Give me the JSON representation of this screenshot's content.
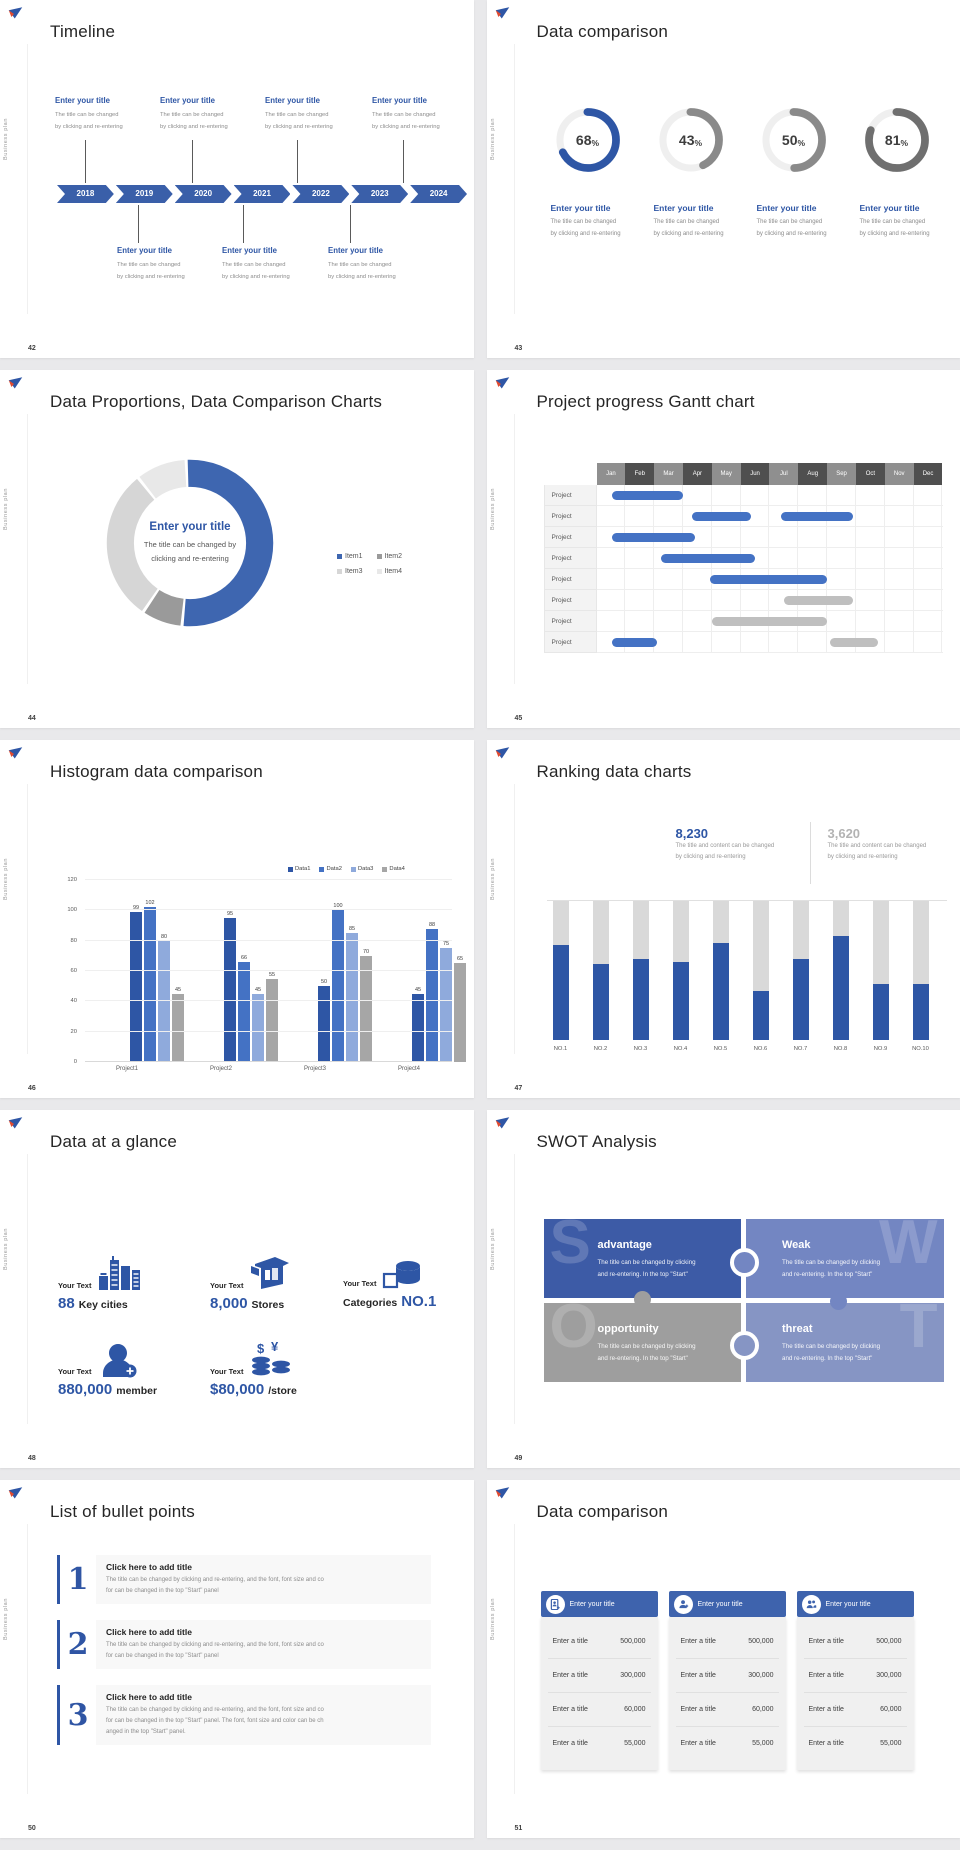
{
  "shared": {
    "brand": "Business plan",
    "enter_title": "Enter your title",
    "desc1": "The title can be changed",
    "desc2": "by clicking and re-entering"
  },
  "colors": {
    "accent_blue": "#2e56a5",
    "chevron_blue": "#3a5fa9",
    "bar_blue": "#4472c4",
    "bar_gray": "#bfbfbf",
    "header_blue": "#3e63ad"
  },
  "slides": {
    "timeline": {
      "number": "42",
      "title": "Timeline",
      "years": [
        "2018",
        "2019",
        "2020",
        "2021",
        "2022",
        "2023",
        "2024"
      ]
    },
    "kpi": {
      "number": "43",
      "title": "Data comparison",
      "items": [
        {
          "value": "68",
          "unit": "%"
        },
        {
          "value": "43",
          "unit": "%"
        },
        {
          "value": "50",
          "unit": "%"
        },
        {
          "value": "81",
          "unit": "%"
        }
      ]
    },
    "proportions": {
      "number": "44",
      "title": "Data Proportions, Data Comparison Charts",
      "center_title": "Enter your title",
      "center_desc1": "The title can be changed by",
      "center_desc2": "clicking and re-entering"
    },
    "gantt": {
      "number": "45",
      "title": "Project progress Gantt chart"
    },
    "histogram": {
      "number": "46",
      "title": "Histogram data comparison"
    },
    "ranking": {
      "number": "47",
      "title": "Ranking data charts",
      "stat_primary": {
        "value": "8,230",
        "desc1": "The title and content can be changed",
        "desc2": "by clicking and re-entering"
      },
      "stat_secondary": {
        "value": "3,620",
        "desc1": "The title and content can be changed",
        "desc2": "by clicking and re-entering"
      }
    },
    "glance": {
      "number": "48",
      "title": "Data at a glance",
      "stats": [
        {
          "label": "Your Text",
          "value": "88",
          "suffix": "Key cities",
          "icon": "city-buildings-icon"
        },
        {
          "label": "Your Text",
          "value": "8,000",
          "suffix": "Stores",
          "icon": "store-icon"
        },
        {
          "label": "Your Text",
          "prefix": "Categories",
          "value": "NO.1",
          "icon": "boxes-icon"
        },
        {
          "label": "Your Text",
          "value": "880,000",
          "suffix": "member",
          "icon": "member-add-icon"
        },
        {
          "label": "Your Text",
          "value": "$80,000",
          "suffix": "/store",
          "icon": "coins-icon"
        }
      ]
    },
    "swot": {
      "number": "49",
      "title": "SWOT Analysis",
      "quadrants": [
        {
          "letter": "S",
          "heading": "advantage",
          "desc1": "The title can be changed by clicking",
          "desc2": "and re-entering. In the top \"Start\"",
          "color": "#3d5ba6"
        },
        {
          "letter": "W",
          "heading": "Weak",
          "desc1": "The title can be changed by clicking",
          "desc2": "and re-entering. In the top \"Start\"",
          "color": "#7386c2"
        },
        {
          "letter": "O",
          "heading": "opportunity",
          "desc1": "The title can be changed by clicking",
          "desc2": "and re-entering. In the top \"Start\"",
          "color": "#9e9e9e"
        },
        {
          "letter": "T",
          "heading": "threat",
          "desc1": "The title can be changed by clicking",
          "desc2": "and re-entering. In the top \"Start\"",
          "color": "#8695c4"
        }
      ]
    },
    "bullets": {
      "number": "50",
      "title": "List of bullet points",
      "items": [
        {
          "num": "1",
          "heading": "Click here to add title",
          "lines": [
            "The title can be changed by clicking and re-entering, and the font, font size and co",
            "for can be changed in the top \"Start\" panel"
          ]
        },
        {
          "num": "2",
          "heading": "Click here to add title",
          "lines": [
            "The title can be changed by clicking and re-entering, and the font, font size and co",
            "for can be changed in the top \"Start\" panel"
          ]
        },
        {
          "num": "3",
          "heading": "Click here to add title",
          "lines": [
            "The title can be changed by clicking and re-entering, and the font, font size and co",
            "for can be changed in the top \"Start\" panel. The font, font size and color can be ch",
            "anged in the top \"Start\" panel."
          ]
        }
      ]
    },
    "tables": {
      "number": "51",
      "title": "Data comparison",
      "cards": [
        {
          "header": "Enter your title",
          "icon": "badge-person-icon",
          "rows": [
            {
              "label": "Enter a title",
              "value": "500,000"
            },
            {
              "label": "Enter a title",
              "value": "300,000"
            },
            {
              "label": "Enter a title",
              "value": "60,000"
            },
            {
              "label": "Enter a title",
              "value": "55,000"
            }
          ]
        },
        {
          "header": "Enter your title",
          "icon": "person-add-icon",
          "rows": [
            {
              "label": "Enter a title",
              "value": "500,000"
            },
            {
              "label": "Enter a title",
              "value": "300,000"
            },
            {
              "label": "Enter a title",
              "value": "60,000"
            },
            {
              "label": "Enter a title",
              "value": "55,000"
            }
          ]
        },
        {
          "header": "Enter your title",
          "icon": "people-icon",
          "rows": [
            {
              "label": "Enter a title",
              "value": "500,000"
            },
            {
              "label": "Enter a title",
              "value": "300,000"
            },
            {
              "label": "Enter a title",
              "value": "60,000"
            },
            {
              "label": "Enter a title",
              "value": "55,000"
            }
          ]
        }
      ]
    }
  },
  "chart_data": [
    {
      "id": "kpi-rings",
      "type": "donut",
      "values": [
        68,
        43,
        50,
        81
      ],
      "labels": [
        "68%",
        "43%",
        "50%",
        "81%"
      ],
      "colors": [
        "#2e56a5",
        "#8a8a8a",
        "#8a8a8a",
        "#6f6f6f"
      ],
      "track": "#efefef"
    },
    {
      "id": "proportions-donut",
      "type": "pie",
      "labels": [
        "Item1",
        "Item2",
        "Item3",
        "Item4"
      ],
      "values": [
        52,
        8,
        30,
        10
      ],
      "colors": [
        "#3e66b0",
        "#9a9a9a",
        "#d6d6d6",
        "#e8e8e8"
      ],
      "legend_position": "right"
    },
    {
      "id": "gantt",
      "type": "gantt",
      "months": [
        "Jan",
        "Feb",
        "Mar",
        "Apr",
        "May",
        "Jun",
        "Jul",
        "Aug",
        "Sep",
        "Oct",
        "Nov",
        "Dec"
      ],
      "row_label": "Project",
      "bar_colors": {
        "blue": "#4472c4",
        "gray": "#bfbfbf"
      },
      "rows": [
        [
          {
            "start": 0.55,
            "end": 3.0,
            "color": "blue"
          }
        ],
        [
          {
            "start": 3.3,
            "end": 5.35,
            "color": "blue"
          },
          {
            "start": 6.4,
            "end": 8.9,
            "color": "blue"
          }
        ],
        [
          {
            "start": 0.55,
            "end": 3.4,
            "color": "blue"
          }
        ],
        [
          {
            "start": 2.25,
            "end": 5.5,
            "color": "blue"
          }
        ],
        [
          {
            "start": 3.95,
            "end": 8.0,
            "color": "blue"
          }
        ],
        [
          {
            "start": 6.5,
            "end": 8.9,
            "color": "gray"
          }
        ],
        [
          {
            "start": 4.0,
            "end": 8.0,
            "color": "gray"
          }
        ],
        [
          {
            "start": 0.55,
            "end": 2.1,
            "color": "blue"
          },
          {
            "start": 8.1,
            "end": 9.75,
            "color": "gray"
          }
        ]
      ]
    },
    {
      "id": "histogram",
      "type": "bar",
      "categories": [
        "Project1",
        "Project2",
        "Project3",
        "Project4"
      ],
      "series": [
        {
          "name": "Data1",
          "color": "#2e56a5",
          "values": [
            99,
            95,
            50,
            45
          ]
        },
        {
          "name": "Data2",
          "color": "#4472c4",
          "values": [
            102,
            66,
            100,
            88
          ]
        },
        {
          "name": "Data3",
          "color": "#8faadc",
          "values": [
            80,
            45,
            85,
            75
          ]
        },
        {
          "name": "Data4",
          "color": "#a6a6a6",
          "values": [
            45,
            55,
            70,
            65
          ]
        }
      ],
      "ylim": [
        0,
        120
      ],
      "yticks": [
        0,
        20,
        40,
        60,
        80,
        100,
        120
      ],
      "grid": true,
      "data_labels": true,
      "legend_position": "top-right"
    },
    {
      "id": "ranking",
      "type": "stacked-bar",
      "categories": [
        "NO.1",
        "NO.2",
        "NO.3",
        "NO.4",
        "NO.5",
        "NO.6",
        "NO.7",
        "NO.8",
        "NO.9",
        "NO.10"
      ],
      "values": [
        68,
        55,
        58,
        56,
        70,
        35,
        58,
        75,
        40,
        40
      ],
      "max": 100,
      "fill": "#2e56a5",
      "track": "#d9d9d9"
    }
  ]
}
